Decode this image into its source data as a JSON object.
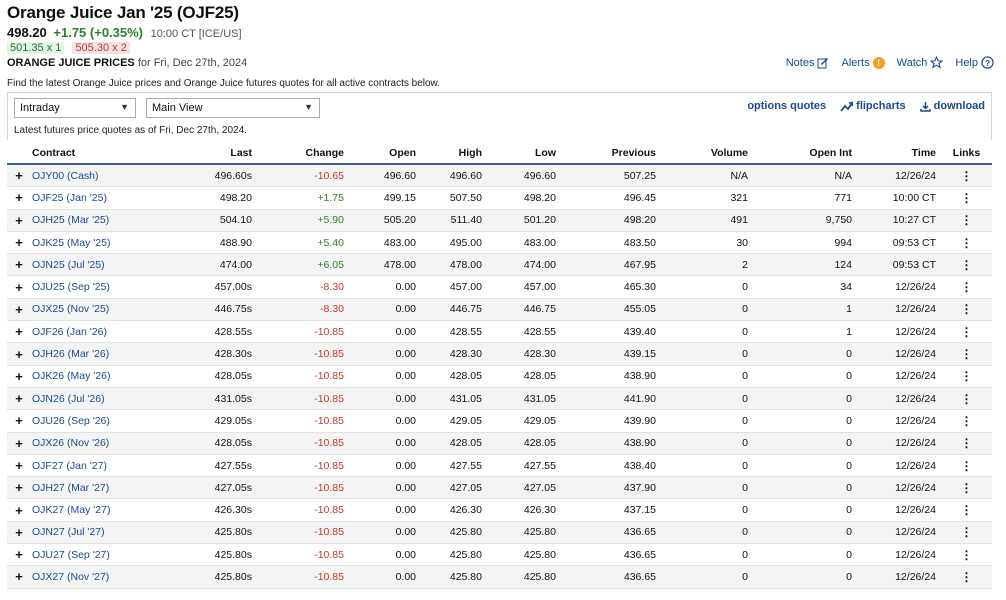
{
  "header": {
    "title": "Orange Juice Jan '25 (OJF25)",
    "last": "498.20",
    "change": "+1.75 (+0.35%)",
    "time": "10:00 CT [ICE/US]",
    "bid": "501.35 x 1",
    "ask": "505.30 x 2",
    "prices_title": "ORANGE JUICE PRICES",
    "prices_date": "for Fri, Dec 27th, 2024"
  },
  "tools": {
    "notes": "Notes",
    "alerts": "Alerts",
    "alerts_badge": "!",
    "watch": "Watch",
    "help": "Help"
  },
  "description": "Find the latest Orange Juice prices and Orange Juice futures quotes for all active contracts below.",
  "controls": {
    "period": "Intraday",
    "view": "Main View",
    "options_quotes": "options quotes",
    "flipcharts": "flipcharts",
    "download": "download",
    "as_of": "Latest futures price quotes as of Fri, Dec 27th, 2024."
  },
  "table": {
    "columns": [
      "Contract",
      "Last",
      "Change",
      "Open",
      "High",
      "Low",
      "Previous",
      "Volume",
      "Open Int",
      "Time",
      "Links"
    ],
    "rows": [
      {
        "contract": "OJY00 (Cash)",
        "last": "496.60s",
        "change": "-10.65",
        "open": "496.60",
        "high": "496.60",
        "low": "496.60",
        "previous": "507.25",
        "volume": "N/A",
        "open_int": "N/A",
        "time": "12/26/24"
      },
      {
        "contract": "OJF25 (Jan '25)",
        "last": "498.20",
        "change": "+1.75",
        "open": "499.15",
        "high": "507.50",
        "low": "498.20",
        "previous": "496.45",
        "volume": "321",
        "open_int": "771",
        "time": "10:00 CT"
      },
      {
        "contract": "OJH25 (Mar '25)",
        "last": "504.10",
        "change": "+5.90",
        "open": "505.20",
        "high": "511.40",
        "low": "501.20",
        "previous": "498.20",
        "volume": "491",
        "open_int": "9,750",
        "time": "10:27 CT"
      },
      {
        "contract": "OJK25 (May '25)",
        "last": "488.90",
        "change": "+5.40",
        "open": "483.00",
        "high": "495.00",
        "low": "483.00",
        "previous": "483.50",
        "volume": "30",
        "open_int": "994",
        "time": "09:53 CT"
      },
      {
        "contract": "OJN25 (Jul '25)",
        "last": "474.00",
        "change": "+6.05",
        "open": "478.00",
        "high": "478.00",
        "low": "474.00",
        "previous": "467.95",
        "volume": "2",
        "open_int": "124",
        "time": "09:53 CT"
      },
      {
        "contract": "OJU25 (Sep '25)",
        "last": "457.00s",
        "change": "-8.30",
        "open": "0.00",
        "high": "457.00",
        "low": "457.00",
        "previous": "465.30",
        "volume": "0",
        "open_int": "34",
        "time": "12/26/24"
      },
      {
        "contract": "OJX25 (Nov '25)",
        "last": "446.75s",
        "change": "-8.30",
        "open": "0.00",
        "high": "446.75",
        "low": "446.75",
        "previous": "455.05",
        "volume": "0",
        "open_int": "1",
        "time": "12/26/24"
      },
      {
        "contract": "OJF26 (Jan '26)",
        "last": "428.55s",
        "change": "-10.85",
        "open": "0.00",
        "high": "428.55",
        "low": "428.55",
        "previous": "439.40",
        "volume": "0",
        "open_int": "1",
        "time": "12/26/24"
      },
      {
        "contract": "OJH26 (Mar '26)",
        "last": "428.30s",
        "change": "-10.85",
        "open": "0.00",
        "high": "428.30",
        "low": "428.30",
        "previous": "439.15",
        "volume": "0",
        "open_int": "0",
        "time": "12/26/24"
      },
      {
        "contract": "OJK26 (May '26)",
        "last": "428.05s",
        "change": "-10.85",
        "open": "0.00",
        "high": "428.05",
        "low": "428.05",
        "previous": "438.90",
        "volume": "0",
        "open_int": "0",
        "time": "12/26/24"
      },
      {
        "contract": "OJN26 (Jul '26)",
        "last": "431.05s",
        "change": "-10.85",
        "open": "0.00",
        "high": "431.05",
        "low": "431.05",
        "previous": "441.90",
        "volume": "0",
        "open_int": "0",
        "time": "12/26/24"
      },
      {
        "contract": "OJU26 (Sep '26)",
        "last": "429.05s",
        "change": "-10.85",
        "open": "0.00",
        "high": "429.05",
        "low": "429.05",
        "previous": "439.90",
        "volume": "0",
        "open_int": "0",
        "time": "12/26/24"
      },
      {
        "contract": "OJX26 (Nov '26)",
        "last": "428.05s",
        "change": "-10.85",
        "open": "0.00",
        "high": "428.05",
        "low": "428.05",
        "previous": "438.90",
        "volume": "0",
        "open_int": "0",
        "time": "12/26/24"
      },
      {
        "contract": "OJF27 (Jan '27)",
        "last": "427.55s",
        "change": "-10.85",
        "open": "0.00",
        "high": "427.55",
        "low": "427.55",
        "previous": "438.40",
        "volume": "0",
        "open_int": "0",
        "time": "12/26/24"
      },
      {
        "contract": "OJH27 (Mar '27)",
        "last": "427.05s",
        "change": "-10.85",
        "open": "0.00",
        "high": "427.05",
        "low": "427.05",
        "previous": "437.90",
        "volume": "0",
        "open_int": "0",
        "time": "12/26/24"
      },
      {
        "contract": "OJK27 (May '27)",
        "last": "426.30s",
        "change": "-10.85",
        "open": "0.00",
        "high": "426.30",
        "low": "426.30",
        "previous": "437.15",
        "volume": "0",
        "open_int": "0",
        "time": "12/26/24"
      },
      {
        "contract": "OJN27 (Jul '27)",
        "last": "425.80s",
        "change": "-10.85",
        "open": "0.00",
        "high": "425.80",
        "low": "425.80",
        "previous": "436.65",
        "volume": "0",
        "open_int": "0",
        "time": "12/26/24"
      },
      {
        "contract": "OJU27 (Sep '27)",
        "last": "425.80s",
        "change": "-10.85",
        "open": "0.00",
        "high": "425.80",
        "low": "425.80",
        "previous": "436.65",
        "volume": "0",
        "open_int": "0",
        "time": "12/26/24"
      },
      {
        "contract": "OJX27 (Nov '27)",
        "last": "425.80s",
        "change": "-10.85",
        "open": "0.00",
        "high": "425.80",
        "low": "425.80",
        "previous": "436.65",
        "volume": "0",
        "open_int": "0",
        "time": "12/26/24"
      }
    ]
  },
  "colors": {
    "positive": "#2e7d32",
    "negative": "#c0392b",
    "link": "#1a4a8a",
    "accent": "#3d5f99"
  }
}
